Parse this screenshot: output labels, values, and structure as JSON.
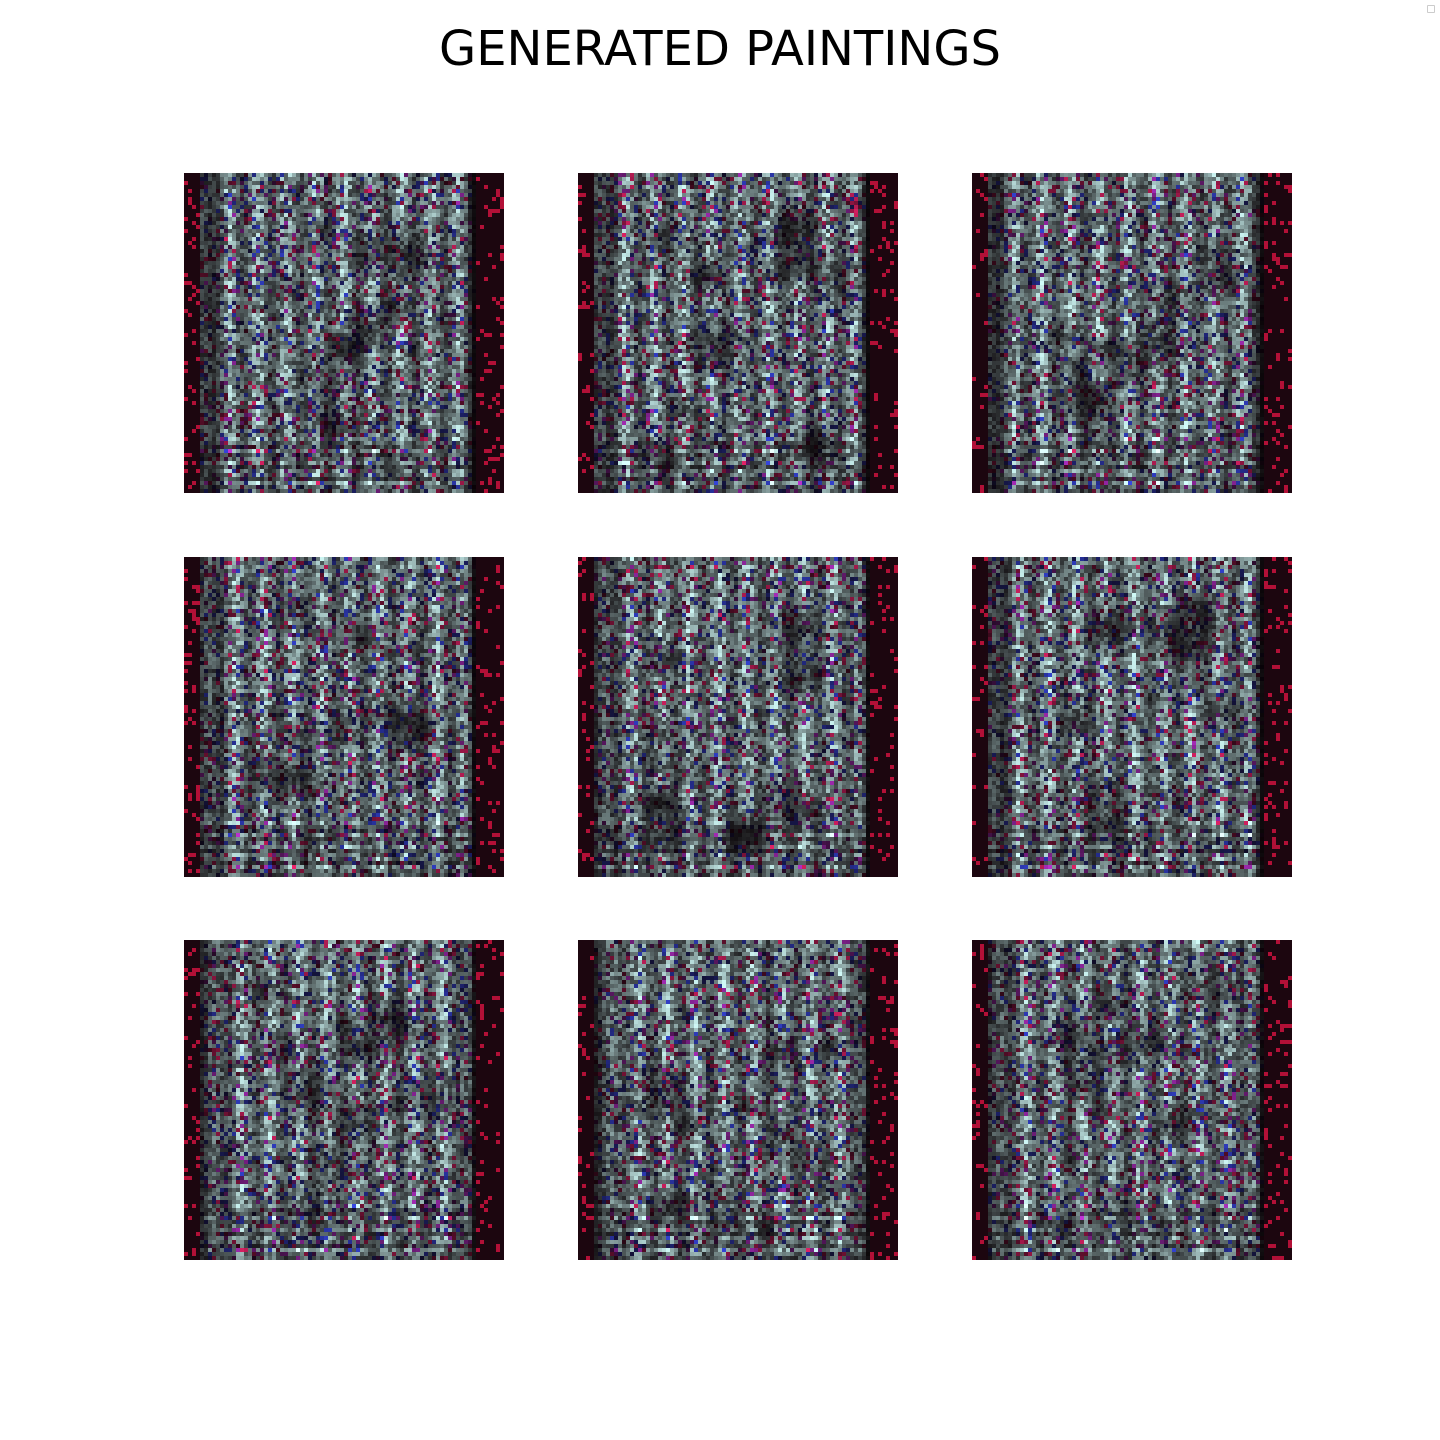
{
  "figure": {
    "title": "GENERATED PAINTINGS"
  },
  "images": [
    {
      "row": 0,
      "col": 0,
      "seed": 11
    },
    {
      "row": 0,
      "col": 1,
      "seed": 23
    },
    {
      "row": 0,
      "col": 2,
      "seed": 37
    },
    {
      "row": 1,
      "col": 0,
      "seed": 41
    },
    {
      "row": 1,
      "col": 1,
      "seed": 53
    },
    {
      "row": 1,
      "col": 2,
      "seed": 67
    },
    {
      "row": 2,
      "col": 0,
      "seed": 71
    },
    {
      "row": 2,
      "col": 1,
      "seed": 83
    },
    {
      "row": 2,
      "col": 2,
      "seed": 97
    }
  ],
  "colors": {
    "background": "#ffffff",
    "noise_dark": "#0a0306",
    "noise_light": "#d8f4f0"
  }
}
